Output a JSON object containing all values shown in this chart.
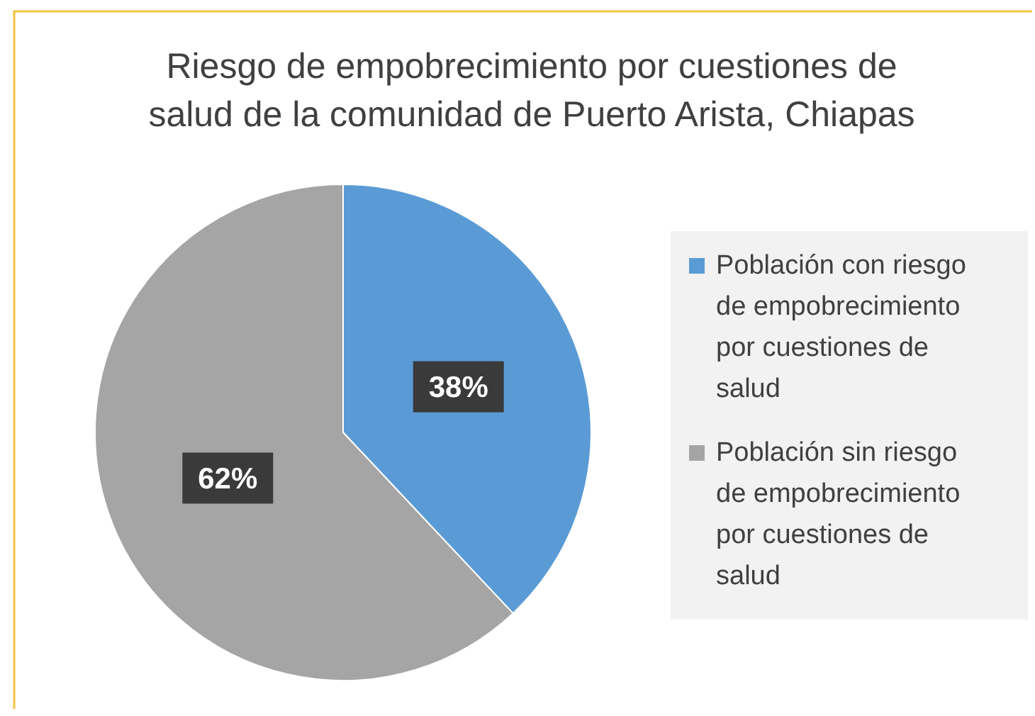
{
  "chart_data": {
    "type": "pie",
    "title": "Riesgo de empobrecimiento por cuestiones de salud de la comunidad de Puerto Arista, Chiapas",
    "categories": [
      "Población con riesgo de empobrecimiento por cuestiones de salud",
      "Población sin riesgo de empobrecimiento por cuestiones de salud"
    ],
    "values": [
      38,
      62
    ],
    "colors": [
      "#5b9bd5",
      "#a5a5a5"
    ],
    "value_labels": [
      "38%",
      "62%"
    ],
    "legend": "right"
  }
}
